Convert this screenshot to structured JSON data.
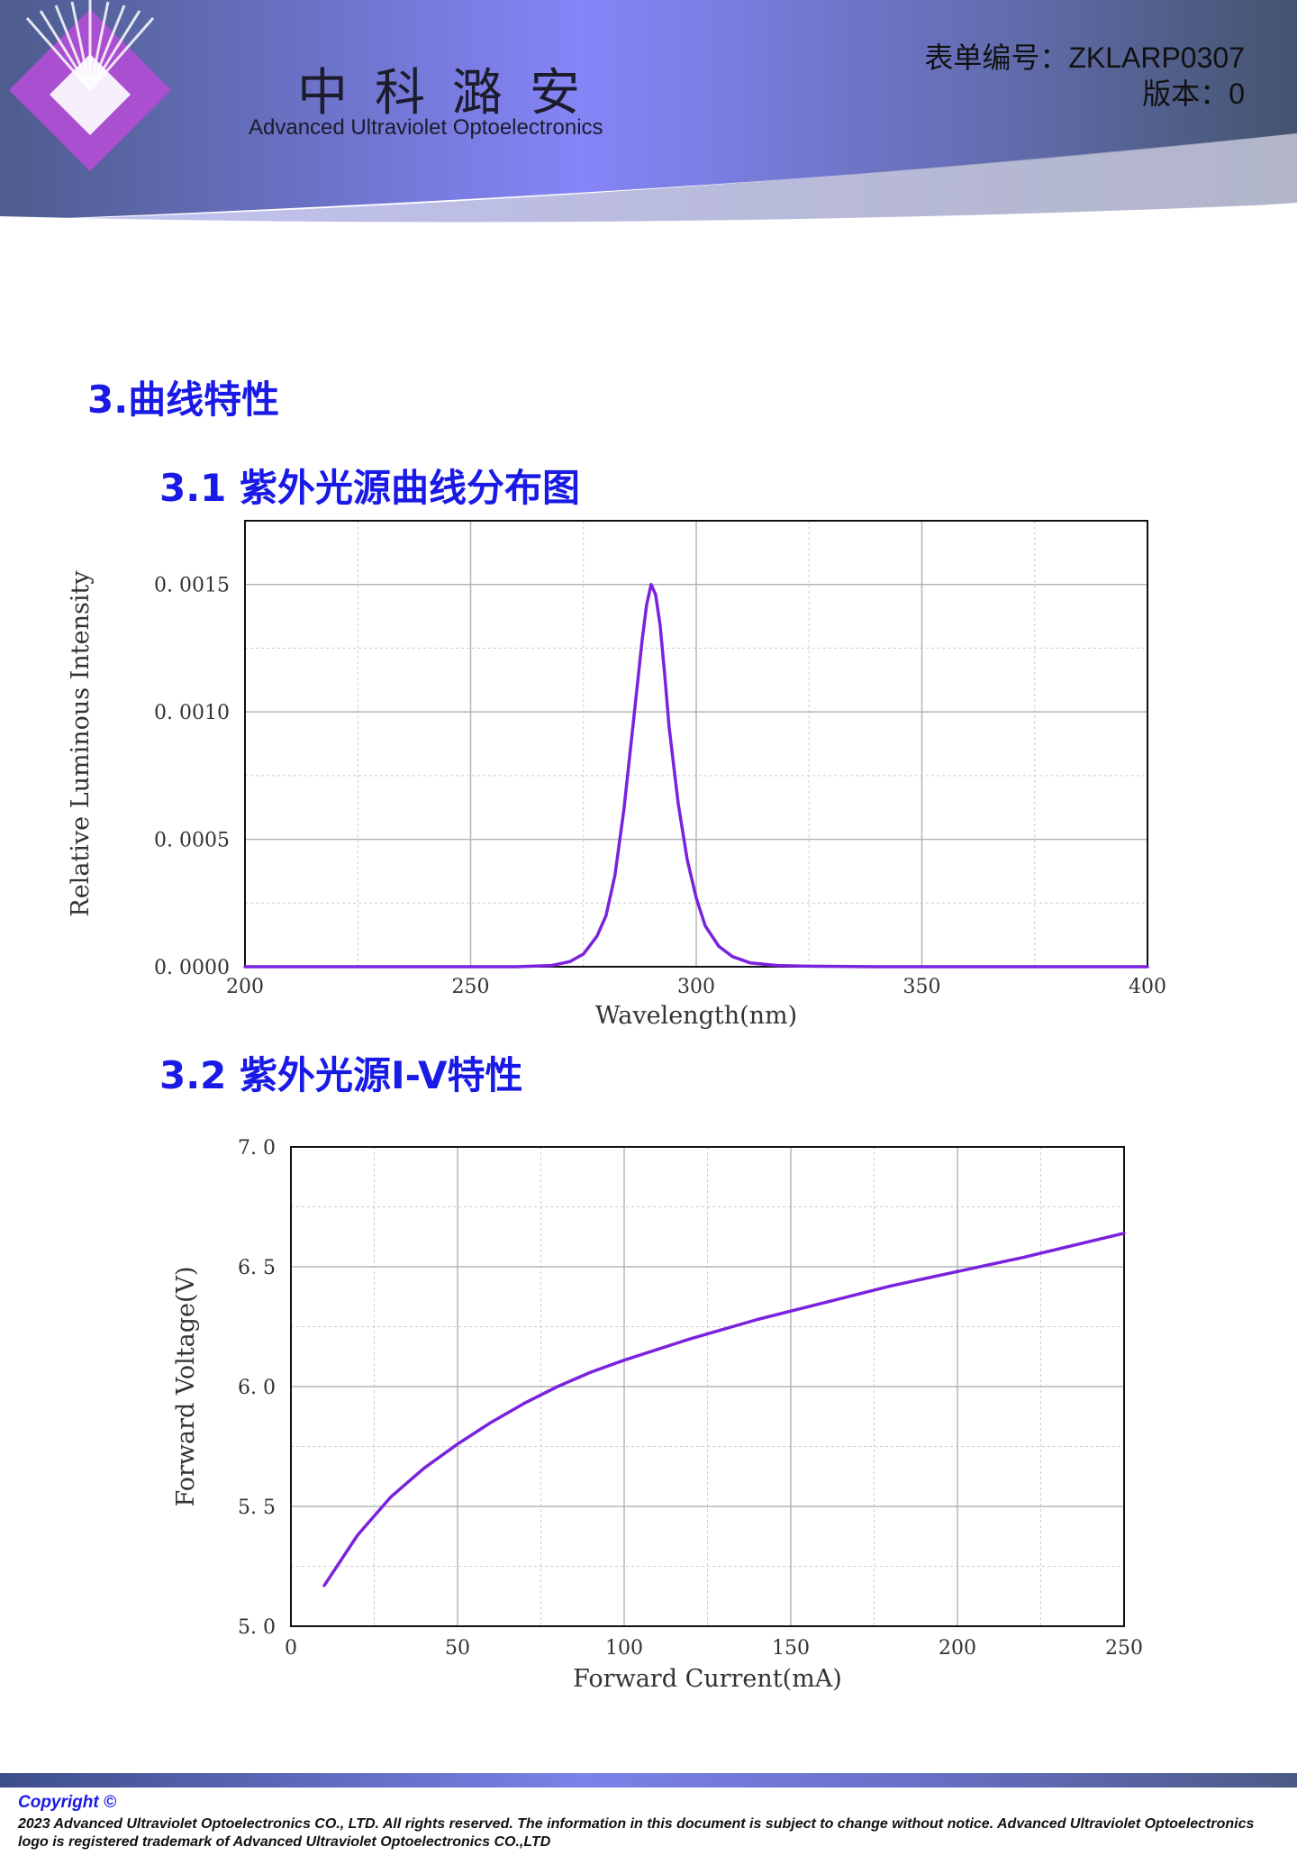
{
  "header": {
    "company_cn": "中科潞安",
    "company_en": "Advanced Ultraviolet Optoelectronics",
    "form_number": "表单编号：ZKLARP0307",
    "version": "版本：0"
  },
  "section": {
    "title": "3.曲线特性",
    "sub1": "3.1 紫外光源曲线分布图",
    "sub2": "3.2 紫外光源I-V特性"
  },
  "chart_data": [
    {
      "type": "line",
      "xlabel": "Wavelength(nm)",
      "ylabel": "Relative Luminous Intensity",
      "xlim": [
        200,
        400
      ],
      "ylim": [
        0,
        0.00175
      ],
      "x_ticks": [
        "200",
        "250",
        "300",
        "350",
        "400"
      ],
      "y_ticks": [
        "0.0000",
        "0.0005",
        "0.0010",
        "0.0015"
      ],
      "grid": true,
      "color": "#7a22dd",
      "series": [
        {
          "x": [
            200,
            260,
            268,
            272,
            275,
            278,
            280,
            282,
            284,
            286,
            288,
            289,
            290,
            291,
            292,
            293,
            294,
            296,
            298,
            300,
            302,
            305,
            308,
            312,
            318,
            325,
            340,
            400
          ],
          "y": [
            0,
            0,
            5e-06,
            2e-05,
            5e-05,
            0.00012,
            0.0002,
            0.00036,
            0.00062,
            0.00095,
            0.00128,
            0.00142,
            0.0015,
            0.00146,
            0.00134,
            0.00115,
            0.00094,
            0.00064,
            0.00042,
            0.00027,
            0.00016,
            8e-05,
            4e-05,
            1.5e-05,
            5e-06,
            2e-06,
            0,
            0
          ]
        }
      ]
    },
    {
      "type": "line",
      "xlabel": "Forward Current(mA)",
      "ylabel": "Forward Voltage(V)",
      "xlim": [
        0,
        250
      ],
      "ylim": [
        5.0,
        7.0
      ],
      "x_ticks": [
        "0",
        "50",
        "100",
        "150",
        "200",
        "250"
      ],
      "y_ticks": [
        "5.0",
        "5.5",
        "6.0",
        "6.5",
        "7.0"
      ],
      "grid": true,
      "color": "#7a22dd",
      "series": [
        {
          "x": [
            10,
            20,
            30,
            40,
            50,
            60,
            70,
            80,
            90,
            100,
            120,
            140,
            160,
            180,
            200,
            220,
            250
          ],
          "y": [
            5.17,
            5.38,
            5.54,
            5.66,
            5.76,
            5.85,
            5.93,
            6.0,
            6.06,
            6.11,
            6.2,
            6.28,
            6.35,
            6.42,
            6.48,
            6.54,
            6.64
          ]
        }
      ]
    }
  ],
  "footer": {
    "copyright": "Copyright ©",
    "text": "2023 Advanced Ultraviolet Optoelectronics CO., LTD. All rights reserved. The information in this document is subject to change without notice. Advanced Ultraviolet Optoelectronics logo is registered trademark of Advanced Ultraviolet Optoelectronics CO.,LTD"
  }
}
